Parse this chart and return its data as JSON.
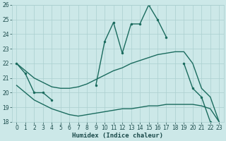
{
  "xlabel": "Humidex (Indice chaleur)",
  "x": [
    0,
    1,
    2,
    3,
    4,
    5,
    6,
    7,
    8,
    9,
    10,
    11,
    12,
    13,
    14,
    15,
    16,
    17,
    18,
    19,
    20,
    21,
    22,
    23
  ],
  "line_main": [
    22,
    21.3,
    20.0,
    20.0,
    19.5,
    null,
    null,
    null,
    null,
    20.5,
    23.5,
    24.8,
    22.7,
    24.7,
    24.7,
    26.0,
    25.0,
    23.8,
    null,
    22.0,
    20.3,
    19.7,
    18.0,
    null
  ],
  "line_upper": [
    22.0,
    21.5,
    21.0,
    20.7,
    20.4,
    20.3,
    20.3,
    20.4,
    20.6,
    20.9,
    21.2,
    21.5,
    21.7,
    22.0,
    22.2,
    22.4,
    22.6,
    22.7,
    22.8,
    22.8,
    22.0,
    20.3,
    19.7,
    18.0
  ],
  "line_lower": [
    20.5,
    20.0,
    19.5,
    19.2,
    18.9,
    18.7,
    18.5,
    18.4,
    18.5,
    18.6,
    18.7,
    18.8,
    18.9,
    18.9,
    19.0,
    19.1,
    19.1,
    19.2,
    19.2,
    19.2,
    19.2,
    19.1,
    18.9,
    18.0
  ],
  "ylim": [
    18,
    26
  ],
  "xlim": [
    -0.5,
    23.5
  ],
  "yticks": [
    18,
    19,
    20,
    21,
    22,
    23,
    24,
    25,
    26
  ],
  "xticks": [
    0,
    1,
    2,
    3,
    4,
    5,
    6,
    7,
    8,
    9,
    10,
    11,
    12,
    13,
    14,
    15,
    16,
    17,
    18,
    19,
    20,
    21,
    22,
    23
  ],
  "bg_color": "#cce8e8",
  "line_color": "#1a6b5e",
  "grid_color": "#aacfcf",
  "font_color": "#1a4a4a"
}
